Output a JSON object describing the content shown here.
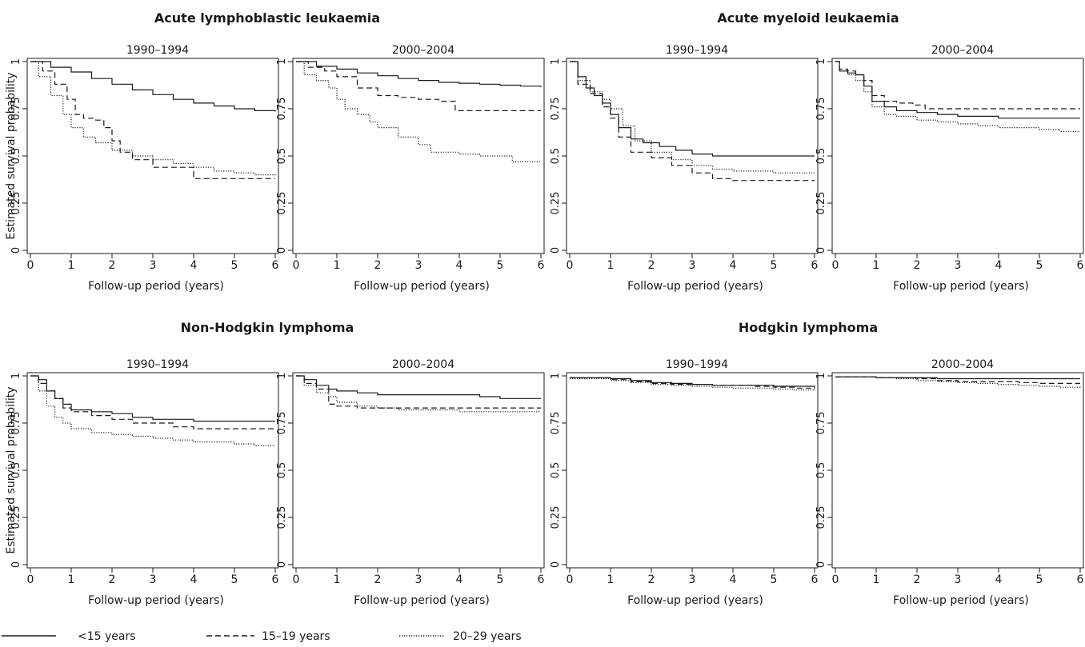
{
  "chart_data": [
    {
      "group": "Acute lymphoblastic leukaemia",
      "title": "1990–1994",
      "type": "line",
      "xlabel": "Follow-up period (years)",
      "ylabel": "Estimated survival probability",
      "xlim": [
        0,
        6
      ],
      "ylim": [
        0,
        1
      ],
      "series": [
        {
          "name": "<15 years",
          "x": [
            0,
            0.5,
            1,
            1.5,
            2,
            2.5,
            3,
            3.5,
            4,
            4.5,
            5,
            5.5,
            6
          ],
          "y": [
            1,
            0.97,
            0.945,
            0.91,
            0.88,
            0.85,
            0.825,
            0.8,
            0.78,
            0.765,
            0.75,
            0.74,
            0.735
          ]
        },
        {
          "name": "15–19 years",
          "x": [
            0,
            0.3,
            0.6,
            0.9,
            1.1,
            1.3,
            1.6,
            1.8,
            2.0,
            2.2,
            2.5,
            3,
            3.5,
            4,
            4.5,
            5,
            5.5,
            6
          ],
          "y": [
            1,
            0.95,
            0.88,
            0.8,
            0.72,
            0.7,
            0.69,
            0.65,
            0.58,
            0.52,
            0.48,
            0.44,
            0.44,
            0.38,
            0.38,
            0.38,
            0.38,
            0.38
          ]
        },
        {
          "name": "20–29 years",
          "x": [
            0,
            0.2,
            0.5,
            0.8,
            1.0,
            1.3,
            1.6,
            2,
            2.5,
            3,
            3.5,
            4,
            4.5,
            5,
            5.5,
            6
          ],
          "y": [
            1,
            0.92,
            0.82,
            0.72,
            0.65,
            0.6,
            0.57,
            0.53,
            0.5,
            0.48,
            0.46,
            0.44,
            0.42,
            0.41,
            0.4,
            0.39
          ]
        }
      ]
    },
    {
      "group": "Acute lymphoblastic leukaemia",
      "title": "2000–2004",
      "type": "line",
      "xlabel": "Follow-up period (years)",
      "ylabel": "",
      "xlim": [
        0,
        6
      ],
      "ylim": [
        0,
        1
      ],
      "series": [
        {
          "name": "<15 years",
          "x": [
            0,
            0.5,
            1,
            1.5,
            2,
            2.5,
            3,
            3.5,
            4,
            4.5,
            5,
            5.5,
            6
          ],
          "y": [
            1,
            0.975,
            0.96,
            0.94,
            0.925,
            0.91,
            0.9,
            0.89,
            0.885,
            0.88,
            0.875,
            0.87,
            0.865
          ]
        },
        {
          "name": "15–19 years",
          "x": [
            0,
            0.3,
            0.7,
            1.0,
            1.5,
            2,
            2.5,
            3,
            3.5,
            3.9,
            4.3,
            5,
            5.5,
            6
          ],
          "y": [
            1,
            0.97,
            0.95,
            0.92,
            0.86,
            0.82,
            0.81,
            0.8,
            0.79,
            0.74,
            0.74,
            0.74,
            0.74,
            0.74
          ]
        },
        {
          "name": "20–29 years",
          "x": [
            0,
            0.2,
            0.5,
            0.8,
            1.0,
            1.2,
            1.5,
            1.8,
            2,
            2.5,
            3,
            3.3,
            3.5,
            4,
            4.5,
            5,
            5.3,
            6
          ],
          "y": [
            1,
            0.93,
            0.9,
            0.86,
            0.8,
            0.75,
            0.72,
            0.68,
            0.65,
            0.6,
            0.56,
            0.52,
            0.52,
            0.51,
            0.5,
            0.5,
            0.47,
            0.47
          ]
        }
      ]
    },
    {
      "group": "Acute myeloid leukaemia",
      "title": "1990–1994",
      "type": "line",
      "xlabel": "Follow-up period (years)",
      "ylabel": "",
      "xlim": [
        0,
        6
      ],
      "ylim": [
        0,
        1
      ],
      "series": [
        {
          "name": "<15 years",
          "x": [
            0,
            0.2,
            0.4,
            0.6,
            0.8,
            1.0,
            1.2,
            1.5,
            1.8,
            2.2,
            2.6,
            3,
            3.5,
            4,
            5,
            6
          ],
          "y": [
            1,
            0.92,
            0.86,
            0.82,
            0.78,
            0.72,
            0.65,
            0.59,
            0.57,
            0.55,
            0.53,
            0.51,
            0.5,
            0.5,
            0.5,
            0.5
          ]
        },
        {
          "name": "15–19 years",
          "x": [
            0,
            0.2,
            0.5,
            0.8,
            1.0,
            1.2,
            1.5,
            2,
            2.5,
            3,
            3.5,
            4,
            5,
            6
          ],
          "y": [
            1,
            0.88,
            0.83,
            0.76,
            0.7,
            0.6,
            0.52,
            0.49,
            0.45,
            0.41,
            0.38,
            0.37,
            0.37,
            0.37
          ]
        },
        {
          "name": "20–29 years",
          "x": [
            0,
            0.2,
            0.5,
            0.8,
            1.0,
            1.3,
            1.6,
            2,
            2.5,
            3,
            3.5,
            4,
            5,
            6
          ],
          "y": [
            1,
            0.9,
            0.84,
            0.8,
            0.75,
            0.66,
            0.58,
            0.52,
            0.48,
            0.45,
            0.43,
            0.42,
            0.41,
            0.41
          ]
        }
      ]
    },
    {
      "group": "Acute myeloid leukaemia",
      "title": "2000–2004",
      "type": "line",
      "xlabel": "Follow-up period (years)",
      "ylabel": "",
      "xlim": [
        0,
        6
      ],
      "ylim": [
        0,
        1
      ],
      "series": [
        {
          "name": "<15 years",
          "x": [
            0,
            0.1,
            0.3,
            0.5,
            0.7,
            0.9,
            1.2,
            1.5,
            2,
            2.5,
            3,
            4,
            5,
            6
          ],
          "y": [
            1,
            0.95,
            0.94,
            0.93,
            0.87,
            0.79,
            0.76,
            0.74,
            0.73,
            0.72,
            0.71,
            0.7,
            0.7,
            0.7
          ]
        },
        {
          "name": "15–19 years",
          "x": [
            0,
            0.1,
            0.3,
            0.5,
            0.7,
            0.9,
            1.2,
            1.5,
            1.9,
            2.2,
            3,
            4,
            5,
            6
          ],
          "y": [
            1,
            0.96,
            0.95,
            0.93,
            0.9,
            0.82,
            0.79,
            0.78,
            0.77,
            0.75,
            0.75,
            0.75,
            0.75,
            0.75
          ]
        },
        {
          "name": "20–29 years",
          "x": [
            0,
            0.1,
            0.3,
            0.5,
            0.7,
            0.9,
            1.2,
            1.5,
            2,
            2.5,
            3,
            3.5,
            4,
            4.5,
            5,
            5.5,
            6
          ],
          "y": [
            1,
            0.95,
            0.93,
            0.9,
            0.84,
            0.76,
            0.72,
            0.71,
            0.69,
            0.68,
            0.67,
            0.66,
            0.65,
            0.65,
            0.64,
            0.63,
            0.63
          ]
        }
      ]
    },
    {
      "group": "Non-Hodgkin lymphoma",
      "title": "1990–1994",
      "type": "line",
      "xlabel": "Follow-up period (years)",
      "ylabel": "Estimated survival probability",
      "xlim": [
        0,
        6
      ],
      "ylim": [
        0,
        1
      ],
      "series": [
        {
          "name": "<15 years",
          "x": [
            0,
            0.2,
            0.4,
            0.6,
            0.8,
            1.0,
            1.5,
            2,
            2.5,
            3,
            3.5,
            4,
            5,
            6
          ],
          "y": [
            1,
            0.98,
            0.92,
            0.88,
            0.85,
            0.82,
            0.81,
            0.8,
            0.78,
            0.77,
            0.77,
            0.76,
            0.76,
            0.76
          ]
        },
        {
          "name": "15–19 years",
          "x": [
            0,
            0.2,
            0.4,
            0.6,
            0.8,
            1.0,
            1.5,
            2,
            2.5,
            3,
            3.5,
            4,
            5,
            6
          ],
          "y": [
            1,
            0.96,
            0.92,
            0.88,
            0.83,
            0.81,
            0.79,
            0.77,
            0.75,
            0.75,
            0.73,
            0.72,
            0.72,
            0.72
          ]
        },
        {
          "name": "20–29 years",
          "x": [
            0,
            0.2,
            0.4,
            0.6,
            0.8,
            1.0,
            1.5,
            2,
            2.5,
            3,
            3.5,
            4,
            4.5,
            5,
            5.5,
            6
          ],
          "y": [
            1,
            0.92,
            0.84,
            0.78,
            0.75,
            0.72,
            0.7,
            0.69,
            0.68,
            0.67,
            0.66,
            0.65,
            0.65,
            0.64,
            0.63,
            0.63
          ]
        }
      ]
    },
    {
      "group": "Non-Hodgkin lymphoma",
      "title": "2000–2004",
      "type": "line",
      "xlabel": "Follow-up period (years)",
      "ylabel": "",
      "xlim": [
        0,
        6
      ],
      "ylim": [
        0,
        1
      ],
      "series": [
        {
          "name": "<15 years",
          "x": [
            0,
            0.2,
            0.5,
            0.8,
            1.0,
            1.5,
            2,
            2.5,
            3,
            4,
            4.5,
            5,
            5.5,
            6
          ],
          "y": [
            1,
            0.98,
            0.95,
            0.93,
            0.92,
            0.91,
            0.9,
            0.9,
            0.9,
            0.9,
            0.89,
            0.88,
            0.88,
            0.88
          ]
        },
        {
          "name": "15–19 years",
          "x": [
            0,
            0.2,
            0.5,
            0.8,
            1.0,
            1.5,
            2,
            2.5,
            3,
            4,
            5,
            6
          ],
          "y": [
            1,
            0.96,
            0.93,
            0.85,
            0.84,
            0.83,
            0.83,
            0.83,
            0.83,
            0.83,
            0.83,
            0.83
          ]
        },
        {
          "name": "20–29 years",
          "x": [
            0,
            0.2,
            0.5,
            0.8,
            1.0,
            1.5,
            2,
            2.5,
            3,
            3.5,
            4,
            5,
            6
          ],
          "y": [
            1,
            0.95,
            0.91,
            0.89,
            0.86,
            0.84,
            0.83,
            0.82,
            0.82,
            0.82,
            0.81,
            0.81,
            0.81
          ]
        }
      ]
    },
    {
      "group": "Hodgkin lymphoma",
      "title": "1990–1994",
      "type": "line",
      "xlabel": "Follow-up period (years)",
      "ylabel": "",
      "xlim": [
        0,
        6
      ],
      "ylim": [
        0,
        1
      ],
      "series": [
        {
          "name": "<15 years",
          "x": [
            0,
            1,
            1.5,
            2,
            2.5,
            3,
            3.5,
            4,
            4.5,
            5,
            5.5,
            6
          ],
          "y": [
            0.99,
            0.985,
            0.975,
            0.965,
            0.96,
            0.955,
            0.95,
            0.95,
            0.95,
            0.945,
            0.945,
            0.935
          ]
        },
        {
          "name": "15–19 years",
          "x": [
            0,
            1,
            1.5,
            2,
            2.5,
            3,
            3.5,
            4,
            4.5,
            5,
            5.5,
            6
          ],
          "y": [
            0.99,
            0.98,
            0.97,
            0.96,
            0.955,
            0.955,
            0.95,
            0.95,
            0.945,
            0.94,
            0.935,
            0.93
          ]
        },
        {
          "name": "20–29 years",
          "x": [
            0,
            1,
            1.5,
            2,
            2.5,
            3,
            3.5,
            4,
            4.5,
            5,
            5.5,
            6
          ],
          "y": [
            0.985,
            0.975,
            0.965,
            0.955,
            0.95,
            0.945,
            0.94,
            0.935,
            0.935,
            0.93,
            0.925,
            0.92
          ]
        }
      ]
    },
    {
      "group": "Hodgkin lymphoma",
      "title": "2000–2004",
      "type": "line",
      "xlabel": "Follow-up period (years)",
      "ylabel": "",
      "xlim": [
        0,
        6
      ],
      "ylim": [
        0,
        1
      ],
      "series": [
        {
          "name": "<15 years",
          "x": [
            0,
            1,
            2,
            2.5,
            3,
            4,
            5,
            6
          ],
          "y": [
            0.995,
            0.99,
            0.99,
            0.985,
            0.985,
            0.985,
            0.985,
            0.985
          ]
        },
        {
          "name": "15–19 years",
          "x": [
            0,
            1,
            2,
            2.5,
            3,
            4,
            4.5,
            5,
            5.5,
            6
          ],
          "y": [
            0.995,
            0.99,
            0.985,
            0.975,
            0.97,
            0.97,
            0.965,
            0.96,
            0.96,
            0.96
          ]
        },
        {
          "name": "20–29 years",
          "x": [
            0,
            1,
            1.5,
            2,
            2.5,
            3,
            3.5,
            4,
            4.5,
            5,
            5.5,
            6
          ],
          "y": [
            0.995,
            0.99,
            0.985,
            0.975,
            0.97,
            0.965,
            0.96,
            0.955,
            0.95,
            0.945,
            0.94,
            0.935
          ]
        }
      ]
    }
  ],
  "legend": [
    {
      "label": "<15 years",
      "style": "solid"
    },
    {
      "label": "15–19 years",
      "style": "dashed"
    },
    {
      "label": "20–29 years",
      "style": "dotted"
    }
  ],
  "x_ticks": [
    "0",
    "1",
    "2",
    "3",
    "4",
    "5",
    "6"
  ],
  "y_ticks": [
    "0",
    "0.25",
    "0.5",
    "0.75",
    "1"
  ],
  "colors": {
    "line": "#1a1a1a",
    "axis": "#1a1a1a"
  }
}
